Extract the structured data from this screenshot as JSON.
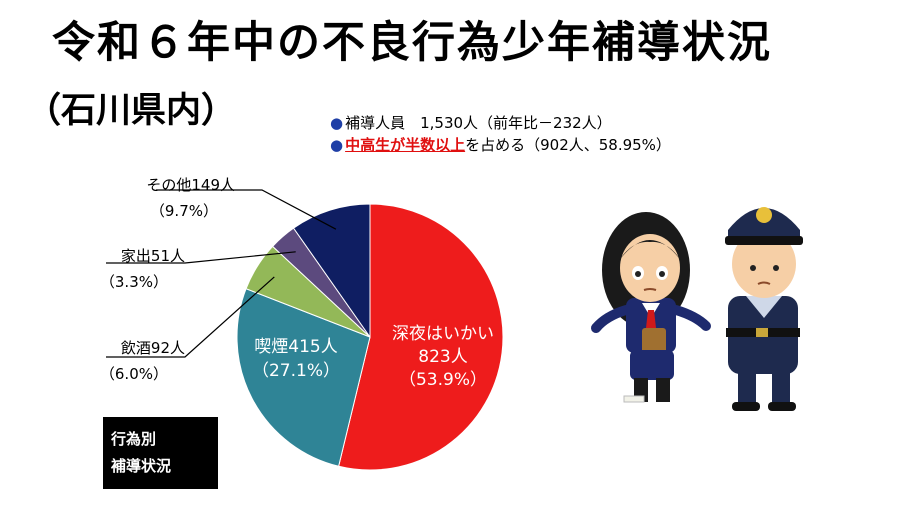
{
  "header": {
    "title": "令和６年中の不良行為少年補導状況",
    "subtitle": "（石川県内）"
  },
  "summary": {
    "line1": "補導人員　1,530人（前年比－232人）",
    "line2_highlight": "中高生が半数以上",
    "line2_rest": "を占める（902人、58.95%）"
  },
  "box_label": {
    "line1": "行為別",
    "line2": "補導状況"
  },
  "chart_data": {
    "type": "pie",
    "title": "",
    "unit": "人",
    "slices": [
      {
        "name": "深夜はいかい",
        "value": 823,
        "percent": 53.9,
        "color": "#ee1c1c",
        "label_name": "深夜はいかい",
        "label_count": "823人",
        "label_pct": "（53.9%）",
        "inside": true
      },
      {
        "name": "喫煙",
        "value": 415,
        "percent": 27.1,
        "color": "#2f8496",
        "label_name": "喫煙415人",
        "label_pct": "（27.1%）",
        "inside": true
      },
      {
        "name": "飲酒",
        "value": 92,
        "percent": 6.0,
        "color": "#93b858",
        "label_name": "飲酒92人",
        "label_pct": "（6.0%）",
        "inside": false
      },
      {
        "name": "家出",
        "value": 51,
        "percent": 3.3,
        "color": "#5c4a7e",
        "label_name": "家出51人",
        "label_pct": "（3.3%）",
        "inside": false
      },
      {
        "name": "その他",
        "value": 149,
        "percent": 9.7,
        "color": "#0f1e62",
        "label_name": "その他149人",
        "label_pct": "（9.7%）",
        "inside": false
      }
    ]
  },
  "illustration": {
    "icon": "girl-and-police-officer-illustration"
  },
  "colors": {
    "bullet": "#1f3fa6",
    "highlight": "#e01010",
    "box_bg": "#000000"
  }
}
